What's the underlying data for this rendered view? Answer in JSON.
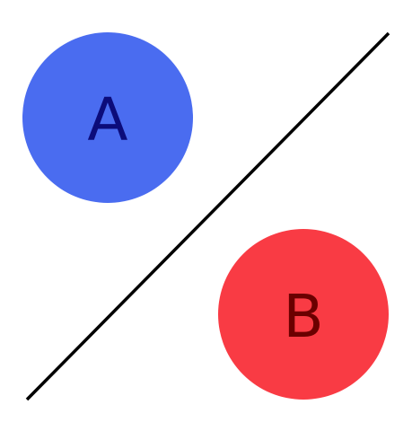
{
  "diagram": {
    "nodes": [
      {
        "id": "a",
        "label": "A",
        "fill": "#4a6cf0",
        "text_color": "#0c0c7a"
      },
      {
        "id": "b",
        "label": "B",
        "fill": "#f93b44",
        "text_color": "#6b0000"
      }
    ],
    "divider": {
      "color": "#000000"
    }
  }
}
